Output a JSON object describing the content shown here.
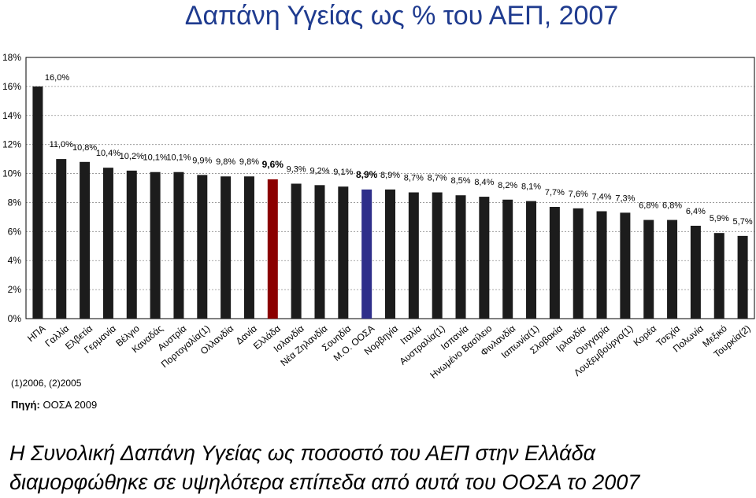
{
  "title": "Δαπάνη Υγείας ως % του ΑΕΠ, 2007",
  "note": "(1)2006, (2)2005",
  "source_label": "Πηγή:",
  "source_text": " ΟΟΣΑ 2009",
  "caption_line1": "Η Συνολική Δαπάνη Υγείας ως ποσοστό του ΑΕΠ στην Ελλάδα",
  "caption_line2": "διαμορφώθηκε σε υψηλότερα επίπεδα από αυτά του ΟΟΣΑ το 2007",
  "colors": {
    "default": "#1c1c1c",
    "greece": "#8b0000",
    "oecd": "#2e2e8a"
  },
  "chart_data": {
    "type": "bar",
    "title": "Δαπάνη Υγείας ως % του ΑΕΠ, 2007",
    "xlabel": "",
    "ylabel": "",
    "ylim": [
      0,
      18
    ],
    "yticks": [
      "0%",
      "2%",
      "4%",
      "6%",
      "8%",
      "10%",
      "12%",
      "14%",
      "16%",
      "18%"
    ],
    "grid": true,
    "categories": [
      "ΗΠΑ",
      "Γαλλία",
      "Ελβετία",
      "Γερμανία",
      "Βέλγιο",
      "Καναδάς",
      "Αυστρία",
      "Πορτογαλία(1)",
      "Ολλανδία",
      "Δανία",
      "Ελλάδα",
      "Ισλανδία",
      "Νέα Ζηλανδία",
      "Σουηδία",
      "Μ.Ο. ΟΟΣΑ",
      "Νορβηγία",
      "Ιταλία",
      "Αυστραλία(1)",
      "Ισπανία",
      "Ηνωμένο Βασίλειο",
      "Φινλανδία",
      "Ιαπωνία(1)",
      "Σλοβακία",
      "Ιρλανδία",
      "Ουγγαρία",
      "Λουξεμβούργο(1)",
      "Κορέα",
      "Τσεχία",
      "Πολωνία",
      "Μεξικό",
      "Τουρκία(2)"
    ],
    "values": [
      16.0,
      11.0,
      10.8,
      10.4,
      10.2,
      10.1,
      10.1,
      9.9,
      9.8,
      9.8,
      9.6,
      9.3,
      9.2,
      9.1,
      8.9,
      8.9,
      8.7,
      8.7,
      8.5,
      8.4,
      8.2,
      8.1,
      7.7,
      7.6,
      7.4,
      7.3,
      6.8,
      6.8,
      6.4,
      5.9,
      5.7
    ],
    "labels": [
      "16,0%",
      "11,0%",
      "10,8%",
      "10,4%",
      "10,2%",
      "10,1%",
      "10,1%",
      "9,9%",
      "9,8%",
      "9,8%",
      "9,6%",
      "9,3%",
      "9,2%",
      "9,1%",
      "8,9%",
      "8,9%",
      "8,7%",
      "8,7%",
      "8,5%",
      "8,4%",
      "8,2%",
      "8,1%",
      "7,7%",
      "7,6%",
      "7,4%",
      "7,3%",
      "6,8%",
      "6,8%",
      "6,4%",
      "5,9%",
      "5,7%"
    ],
    "highlight": {
      "Ελλάδα": "greece",
      "Μ.Ο. ΟΟΣΑ": "oecd"
    }
  }
}
